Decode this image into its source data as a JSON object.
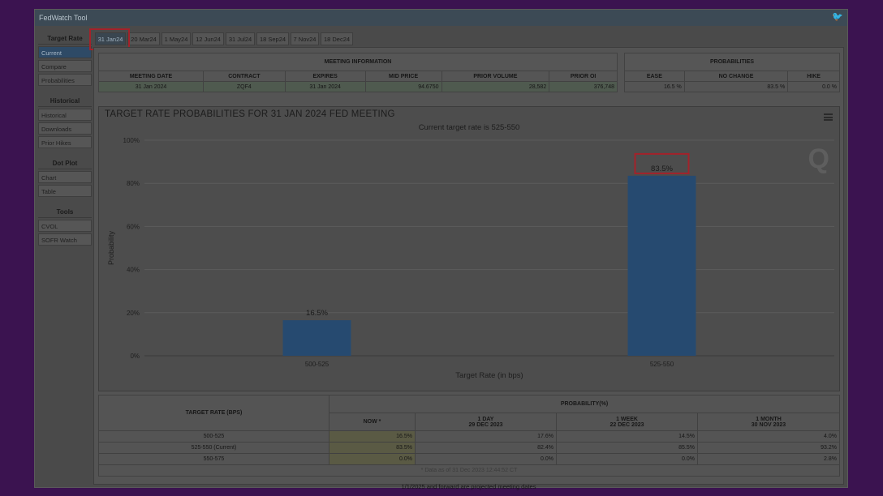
{
  "app": {
    "title": "FedWatch Tool",
    "icon": "twitter-icon"
  },
  "sidebar": [
    {
      "section": "Target Rate",
      "items": [
        "Current",
        "Compare",
        "Probabilities"
      ]
    },
    {
      "section": "Historical",
      "items": [
        "Historical",
        "Downloads",
        "Prior Hikes"
      ]
    },
    {
      "section": "Dot Plot",
      "items": [
        "Chart",
        "Table"
      ]
    },
    {
      "section": "Tools",
      "items": [
        "CVOL",
        "SOFR Watch"
      ]
    }
  ],
  "tabs": [
    "31 Jan24",
    "20 Mar24",
    "1 May24",
    "12 Jun24",
    "31 Jul24",
    "18 Sep24",
    "7 Nov24",
    "18 Dec24"
  ],
  "meeting_info": {
    "heading": "MEETING INFORMATION",
    "columns": [
      "MEETING DATE",
      "CONTRACT",
      "EXPIRES",
      "MID PRICE",
      "PRIOR VOLUME",
      "PRIOR OI"
    ],
    "values": [
      "31 Jan 2024",
      "ZQF4",
      "31 Jan 2024",
      "94.6750",
      "28,582",
      "376,748"
    ]
  },
  "probabilities": {
    "heading": "PROBABILITIES",
    "columns": [
      "EASE",
      "NO CHANGE",
      "HIKE"
    ],
    "values": [
      "16.5 %",
      "83.5 %",
      "0.0 %"
    ]
  },
  "chart": {
    "title": "TARGET RATE PROBABILITIES FOR 31 JAN 2024 FED MEETING",
    "subtitle": "Current target rate is 525-550",
    "logo": "Q"
  },
  "chart_data": {
    "type": "bar",
    "title": "TARGET RATE PROBABILITIES FOR 31 JAN 2024 FED MEETING",
    "subtitle": "Current target rate is 525-550",
    "xlabel": "Target Rate (in bps)",
    "ylabel": "Probability",
    "categories": [
      "500-525",
      "525-550"
    ],
    "values": [
      16.5,
      83.5
    ],
    "data_labels": [
      "16.5%",
      "83.5%"
    ],
    "ylim": [
      0,
      100
    ],
    "yticks": [
      "0%",
      "20%",
      "40%",
      "60%",
      "80%",
      "100%"
    ],
    "bar_color": "#264a70",
    "grid": true
  },
  "prob_table": {
    "rate_header": "TARGET RATE (BPS)",
    "prob_header": "PROBABILITY(%)",
    "now_header": "NOW *",
    "periods": [
      {
        "label": "1 DAY",
        "date": "29 DEC 2023"
      },
      {
        "label": "1 WEEK",
        "date": "22 DEC 2023"
      },
      {
        "label": "1 MONTH",
        "date": "30 NOV 2023"
      }
    ],
    "rows": [
      {
        "rate": "500-525",
        "now": "16.5%",
        "day": "17.6%",
        "week": "14.5%",
        "month": "4.0%"
      },
      {
        "rate": "525-550 (Current)",
        "now": "83.5%",
        "day": "82.4%",
        "week": "85.5%",
        "month": "93.2%"
      },
      {
        "rate": "550-575",
        "now": "0.0%",
        "day": "0.0%",
        "week": "0.0%",
        "month": "2.8%"
      }
    ],
    "footnote": "* Data as of 31 Dec 2023 12:44:52 CT"
  },
  "projected_note": "1/1/2025 and forward are projected meeting dates",
  "highlight_color": "#a3222a"
}
